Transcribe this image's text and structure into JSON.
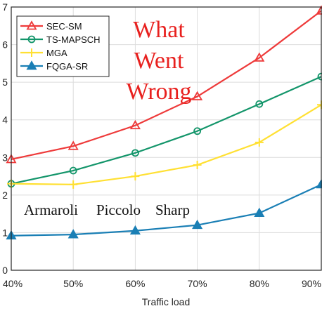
{
  "chart_data": {
    "type": "line",
    "title": "",
    "xlabel": "Traffic load",
    "ylabel": "",
    "categories": [
      "40%",
      "50%",
      "60%",
      "70%",
      "80%",
      "90%"
    ],
    "y_ticks": [
      "0",
      "1",
      "2",
      "3",
      "4",
      "5",
      "6",
      "7"
    ],
    "ylim": [
      0,
      7
    ],
    "grid": true,
    "legend_position": "top-left",
    "series": [
      {
        "name": "SEC-SM",
        "color": "#ee3a3a",
        "marker": "triangle-up",
        "values": [
          2.95,
          3.3,
          3.85,
          4.62,
          5.65,
          6.9
        ]
      },
      {
        "name": "TS-MAPSCH",
        "color": "#13956a",
        "marker": "circle",
        "values": [
          2.3,
          2.65,
          3.12,
          3.7,
          4.42,
          5.15
        ]
      },
      {
        "name": "MGA",
        "color": "#ffe033",
        "marker": "plus",
        "values": [
          2.3,
          2.28,
          2.5,
          2.8,
          3.4,
          4.4
        ]
      },
      {
        "name": "FQGA-SR",
        "color": "#1a7fb5",
        "marker": "triangle-up-filled",
        "values": [
          0.92,
          0.95,
          1.05,
          1.2,
          1.52,
          2.28
        ]
      }
    ],
    "annotations": {
      "overlay_title": [
        "What",
        "Went",
        "Wrong"
      ],
      "overlay_color": "#e8201e",
      "names_line": [
        "Armaroli",
        "Piccolo",
        "Sharp"
      ]
    }
  }
}
